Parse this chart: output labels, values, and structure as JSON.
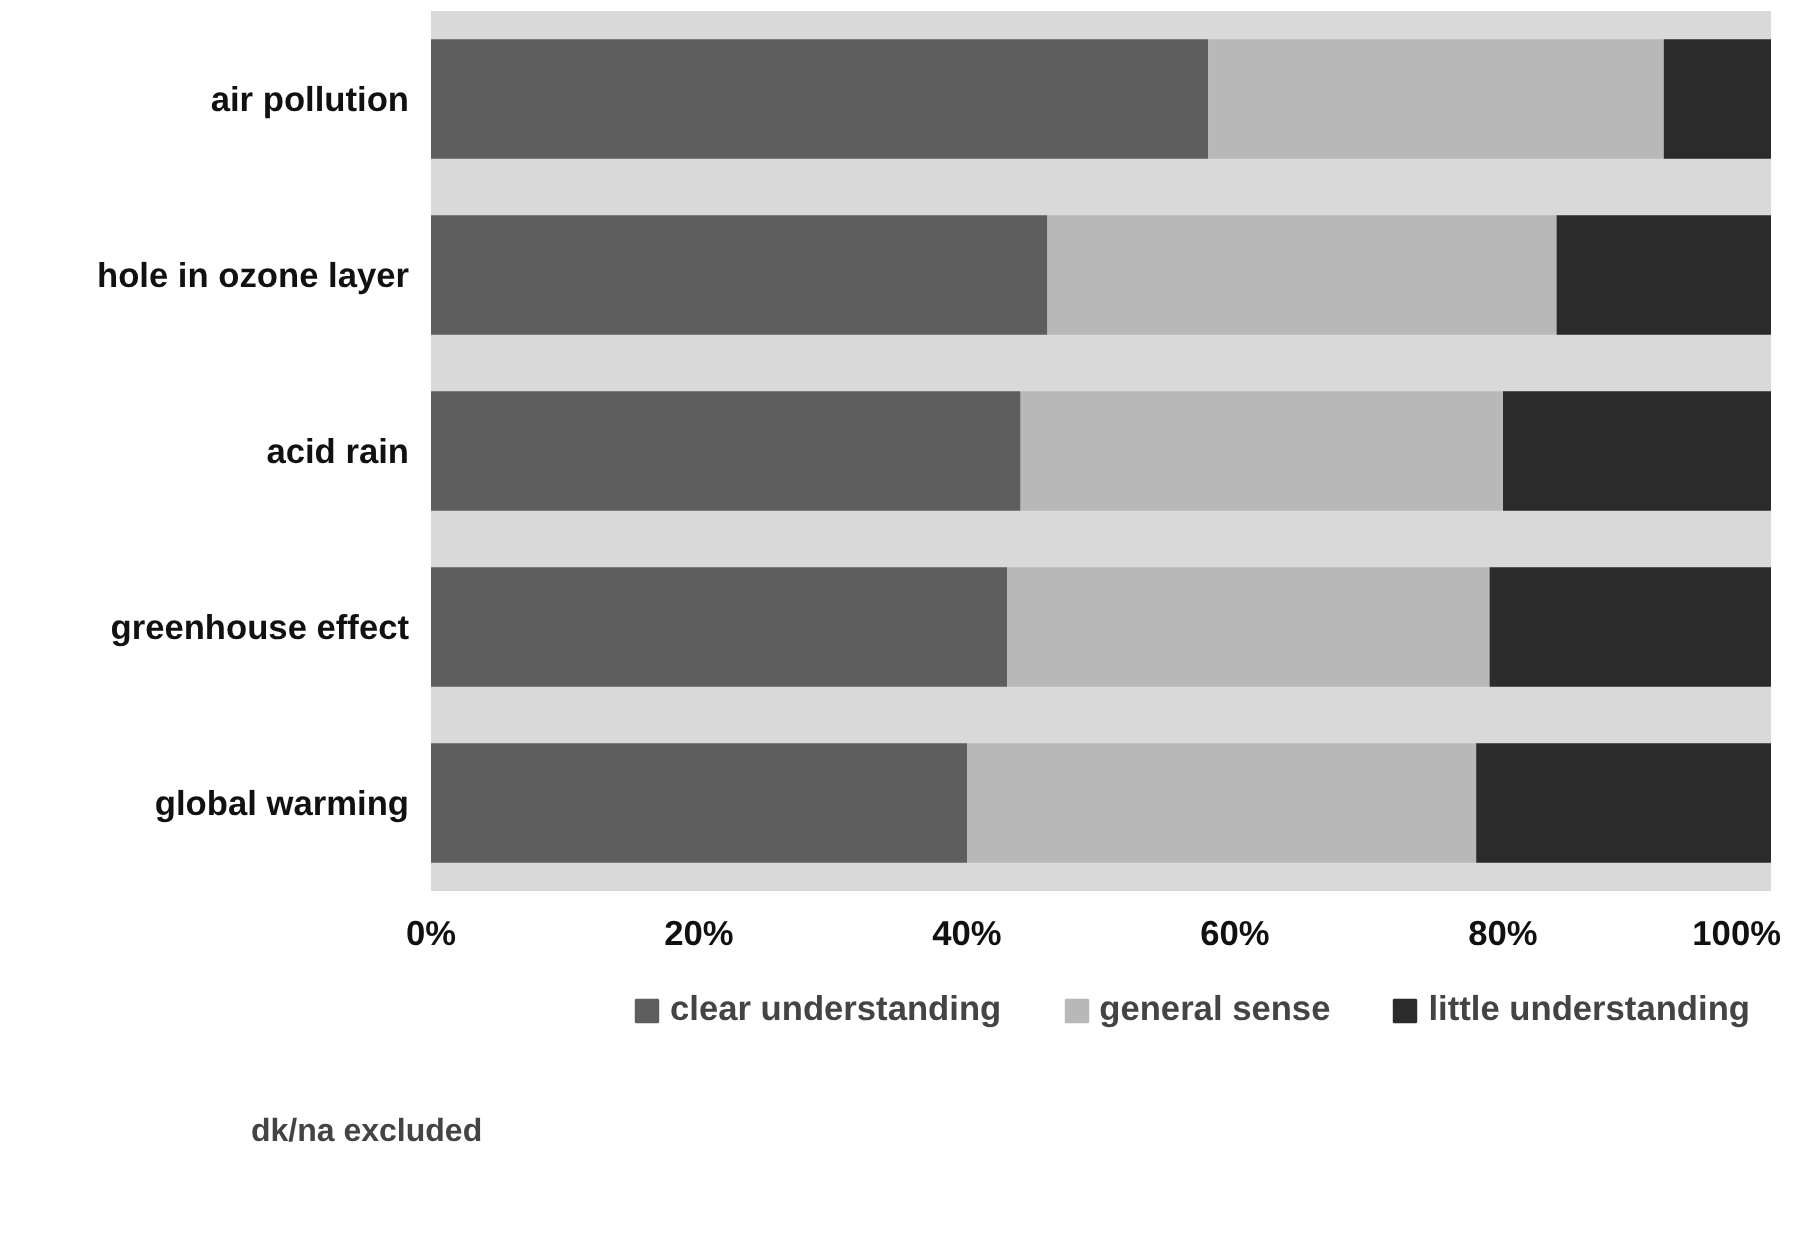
{
  "chart_data": {
    "type": "bar",
    "orientation": "horizontal",
    "stacked": true,
    "categories": [
      "air pollution",
      "hole in ozone layer",
      "acid rain",
      "greenhouse effect",
      "global warming"
    ],
    "series": [
      {
        "name": "clear understanding",
        "color": "#5e5e5e",
        "values": [
          58,
          46,
          44,
          43,
          40
        ]
      },
      {
        "name": "general sense",
        "color": "#b8b8b8",
        "values": [
          34,
          38,
          36,
          36,
          38
        ]
      },
      {
        "name": "little understanding",
        "color": "#2b2b2b",
        "values": [
          8,
          16,
          20,
          21,
          22
        ]
      }
    ],
    "xlim": [
      0,
      100
    ],
    "xticks": [
      {
        "value": 0,
        "label": "0%"
      },
      {
        "value": 20,
        "label": "20%"
      },
      {
        "value": 40,
        "label": "40%"
      },
      {
        "value": 60,
        "label": "60%"
      },
      {
        "value": 80,
        "label": "80%"
      },
      {
        "value": 100,
        "label": "100%"
      }
    ],
    "grid": false,
    "legend": "bottom",
    "annotations": [
      "dk/na excluded"
    ]
  }
}
